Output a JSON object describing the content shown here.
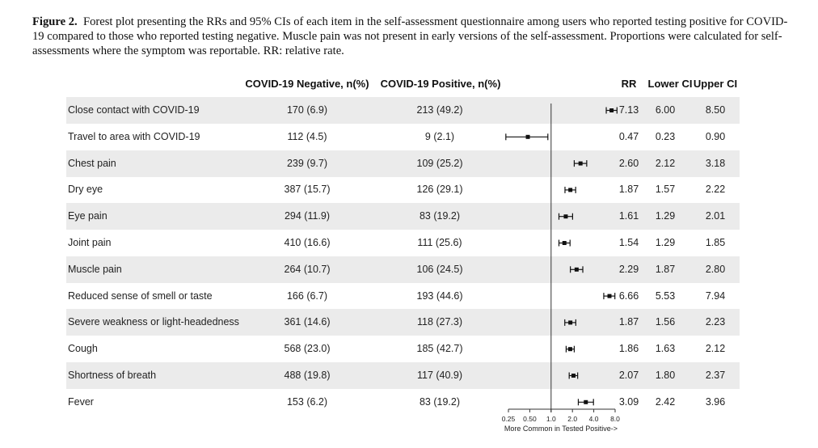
{
  "caption": {
    "figure_label": "Figure 2.",
    "text": "Forest plot presenting the RRs and 95% CIs of each item in the self-assessment questionnaire among users who reported testing positive for COVID-19 compared to those who reported testing negative. Muscle pain was not present in early versions of the self-assessment. Proportions were calculated for self-assessments where the symptom was reportable. RR: relative rate."
  },
  "headers": {
    "negative": "COVID-19 Negative, n(%)",
    "positive": "COVID-19 Positive, n(%)",
    "rr": "RR",
    "lower": "Lower CI",
    "upper": "Upper CI"
  },
  "rows": [
    {
      "label": "Close contact with COVID-19",
      "neg": "170 (6.9)",
      "pos": "213 (49.2)",
      "rr": "7.13",
      "lo": "6.00",
      "hi": "8.50"
    },
    {
      "label": "Travel to area with COVID-19",
      "neg": "112 (4.5)",
      "pos": "9 (2.1)",
      "rr": "0.47",
      "lo": "0.23",
      "hi": "0.90"
    },
    {
      "label": "Chest pain",
      "neg": "239 (9.7)",
      "pos": "109 (25.2)",
      "rr": "2.60",
      "lo": "2.12",
      "hi": "3.18"
    },
    {
      "label": "Dry eye",
      "neg": "387 (15.7)",
      "pos": "126 (29.1)",
      "rr": "1.87",
      "lo": "1.57",
      "hi": "2.22"
    },
    {
      "label": "Eye pain",
      "neg": "294 (11.9)",
      "pos": "83 (19.2)",
      "rr": "1.61",
      "lo": "1.29",
      "hi": "2.01"
    },
    {
      "label": "Joint pain",
      "neg": "410 (16.6)",
      "pos": "111 (25.6)",
      "rr": "1.54",
      "lo": "1.29",
      "hi": "1.85"
    },
    {
      "label": "Muscle pain",
      "neg": "264 (10.7)",
      "pos": "106 (24.5)",
      "rr": "2.29",
      "lo": "1.87",
      "hi": "2.80"
    },
    {
      "label": "Reduced sense of smell or taste",
      "neg": "166 (6.7)",
      "pos": "193 (44.6)",
      "rr": "6.66",
      "lo": "5.53",
      "hi": "7.94"
    },
    {
      "label": "Severe weakness or light-headedness",
      "neg": "361 (14.6)",
      "pos": "118 (27.3)",
      "rr": "1.87",
      "lo": "1.56",
      "hi": "2.23"
    },
    {
      "label": "Cough",
      "neg": "568 (23.0)",
      "pos": "185 (42.7)",
      "rr": "1.86",
      "lo": "1.63",
      "hi": "2.12"
    },
    {
      "label": "Shortness of breath",
      "neg": "488 (19.8)",
      "pos": "117 (40.9)",
      "rr": "2.07",
      "lo": "1.80",
      "hi": "2.37"
    },
    {
      "label": "Fever",
      "neg": "153 (6.2)",
      "pos": "83 (19.2)",
      "rr": "3.09",
      "lo": "2.42",
      "hi": "3.96"
    }
  ],
  "chart_data": {
    "type": "scatter",
    "subtype": "forest-plot",
    "x_scale": "log2",
    "xlim": [
      0.25,
      8.0
    ],
    "reference_line": 1.0,
    "xticks": [
      "0.25",
      "0.50",
      "1.0",
      "2.0",
      "4.0",
      "8.0"
    ],
    "xlabel": "More Common in Tested Positive->",
    "categories": [
      "Close contact with COVID-19",
      "Travel to area with COVID-19",
      "Chest pain",
      "Dry eye",
      "Eye pain",
      "Joint pain",
      "Muscle pain",
      "Reduced sense of smell or taste",
      "Severe weakness or light-headedness",
      "Cough",
      "Shortness of breath",
      "Fever"
    ],
    "rr": [
      7.13,
      0.47,
      2.6,
      1.87,
      1.61,
      1.54,
      2.29,
      6.66,
      1.87,
      1.86,
      2.07,
      3.09
    ],
    "lower_ci": [
      6.0,
      0.23,
      2.12,
      1.57,
      1.29,
      1.29,
      1.87,
      5.53,
      1.56,
      1.63,
      1.8,
      2.42
    ],
    "upper_ci": [
      8.5,
      0.9,
      3.18,
      2.22,
      2.01,
      1.85,
      2.8,
      7.94,
      2.23,
      2.12,
      2.37,
      3.96
    ]
  }
}
